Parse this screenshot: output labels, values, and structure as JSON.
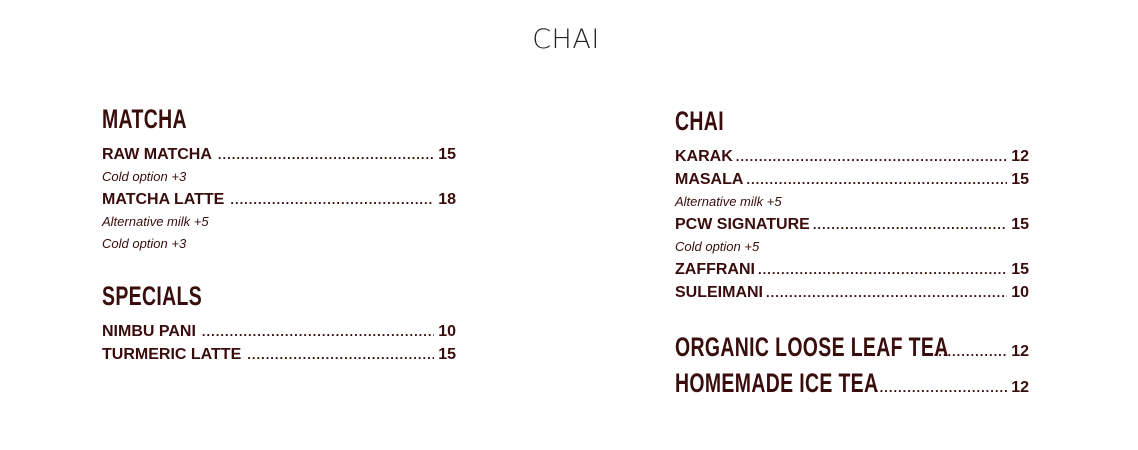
{
  "title": "CHAI",
  "left": {
    "sections": [
      {
        "heading": "MATCHA",
        "items": [
          {
            "name": "RAW MATCHA",
            "price": "15",
            "notes": [
              "Cold option +3"
            ]
          },
          {
            "name": "MATCHA LATTE",
            "price": "18",
            "notes": [
              "Alternative milk +5",
              "Cold option +3"
            ]
          }
        ]
      },
      {
        "heading": "SPECIALS",
        "items": [
          {
            "name": "NIMBU PANI",
            "price": "10"
          },
          {
            "name": "TURMERIC LATTE",
            "price": "15"
          }
        ]
      }
    ]
  },
  "right": {
    "heading": "CHAI",
    "items": [
      {
        "name": "KARAK",
        "price": "12"
      },
      {
        "name": "MASALA",
        "price": "15",
        "notes": [
          "Alternative milk +5"
        ]
      },
      {
        "name": "PCW SIGNATURE",
        "price": "15",
        "notes": [
          "Cold option +5"
        ]
      },
      {
        "name": "ZAFFRANI",
        "price": "15"
      },
      {
        "name": "SULEIMANI",
        "price": "10"
      }
    ],
    "big_items": [
      {
        "name": "ORGANIC LOOSE LEAF TEA",
        "price": "12"
      },
      {
        "name": "HOMEMADE ICE TEA",
        "price": "12"
      }
    ]
  },
  "colors": {
    "text": "#3a0d0d"
  }
}
